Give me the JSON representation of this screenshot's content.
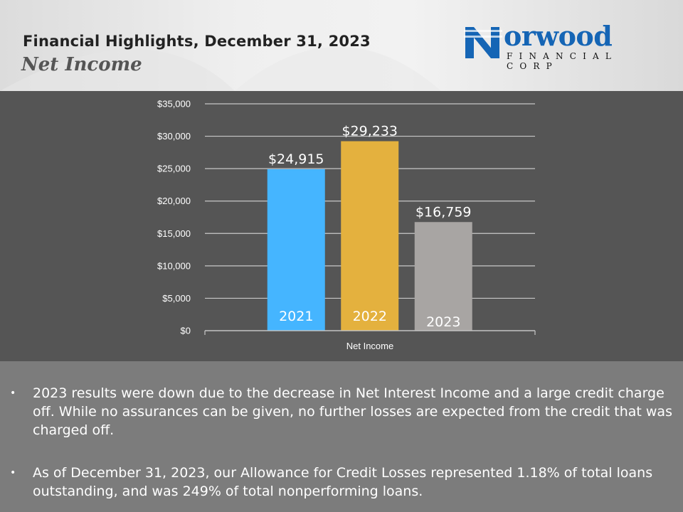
{
  "header": {
    "title": "Financial Highlights, December 31, 2023",
    "subtitle": "Net Income"
  },
  "logo": {
    "word": "orwood",
    "initial": "N",
    "sub": "FINANCIAL CORP",
    "color": "#1565b5"
  },
  "chart_data": {
    "type": "bar",
    "xlabel": "Net Income",
    "ylabel": "",
    "ylim": [
      0,
      35000
    ],
    "y_ticks": [
      0,
      5000,
      10000,
      15000,
      20000,
      25000,
      30000,
      35000
    ],
    "y_tick_labels": [
      "$0",
      "$5,000",
      "$10,000",
      "$15,000",
      "$20,000",
      "$25,000",
      "$30,000",
      "$35,000"
    ],
    "grid": true,
    "categories": [
      "2021",
      "2022",
      "2023"
    ],
    "values": [
      24915,
      29233,
      16759
    ],
    "value_labels": [
      "$24,915",
      "$29,233",
      "$16,759"
    ],
    "colors": [
      "#45b5ff",
      "#e4b13e",
      "#a8a5a3"
    ]
  },
  "bullets": [
    "2023 results were down due to the decrease in Net Interest Income and a large credit charge off.  While no assurances can be given, no further losses are expected from the credit that was charged off.",
    "As of December 31, 2023, our Allowance for Credit Losses represented 1.18% of total loans outstanding, and was 249% of total nonperforming loans."
  ],
  "bullet_marker": "•"
}
